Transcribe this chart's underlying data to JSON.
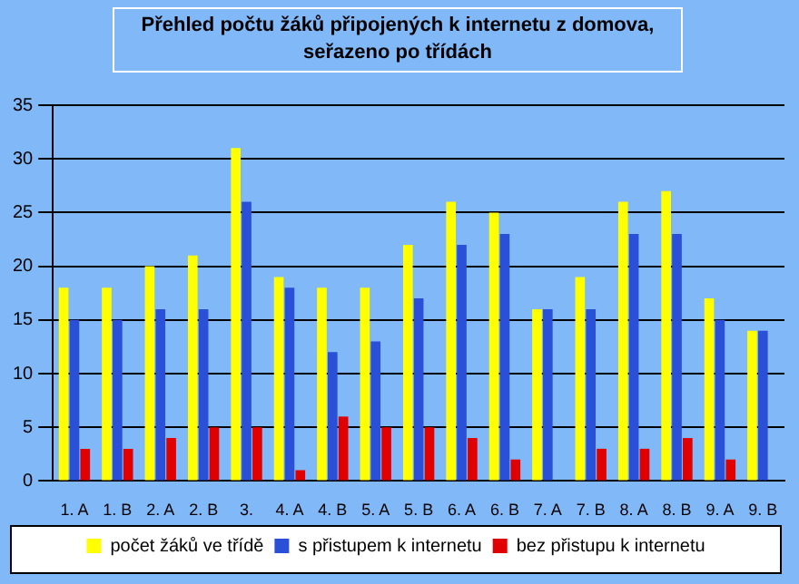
{
  "chart_data": {
    "type": "bar",
    "title": "Přehled počtu žáků připojených k internetu z domova, seřazeno po třídách",
    "categories": [
      "1. A",
      "1. B",
      "2. A",
      "2. B",
      "3.",
      "4. A",
      "4. B",
      "5. A",
      "5. B",
      "6. A",
      "6. B",
      "7. A",
      "7. B",
      "8. A",
      "8. B",
      "9. A",
      "9. B"
    ],
    "series": [
      {
        "name": "počet žáků ve třídě",
        "color": "#ffff00",
        "values": [
          18,
          18,
          20,
          21,
          31,
          19,
          18,
          18,
          22,
          26,
          25,
          16,
          19,
          26,
          27,
          17,
          14
        ]
      },
      {
        "name": "s přistupem k internetu",
        "color": "#2b50d8",
        "values": [
          15,
          15,
          16,
          16,
          26,
          18,
          12,
          13,
          17,
          22,
          23,
          16,
          16,
          23,
          23,
          15,
          14
        ]
      },
      {
        "name": "bez přistupu k internetu",
        "color": "#e00000",
        "values": [
          3,
          3,
          4,
          5,
          5,
          1,
          6,
          5,
          5,
          4,
          2,
          0,
          3,
          3,
          4,
          2,
          0
        ]
      }
    ],
    "ylim": [
      0,
      35
    ],
    "yticks": [
      0,
      5,
      10,
      15,
      20,
      25,
      30,
      35
    ],
    "grid": "y",
    "legend": "bottom"
  }
}
